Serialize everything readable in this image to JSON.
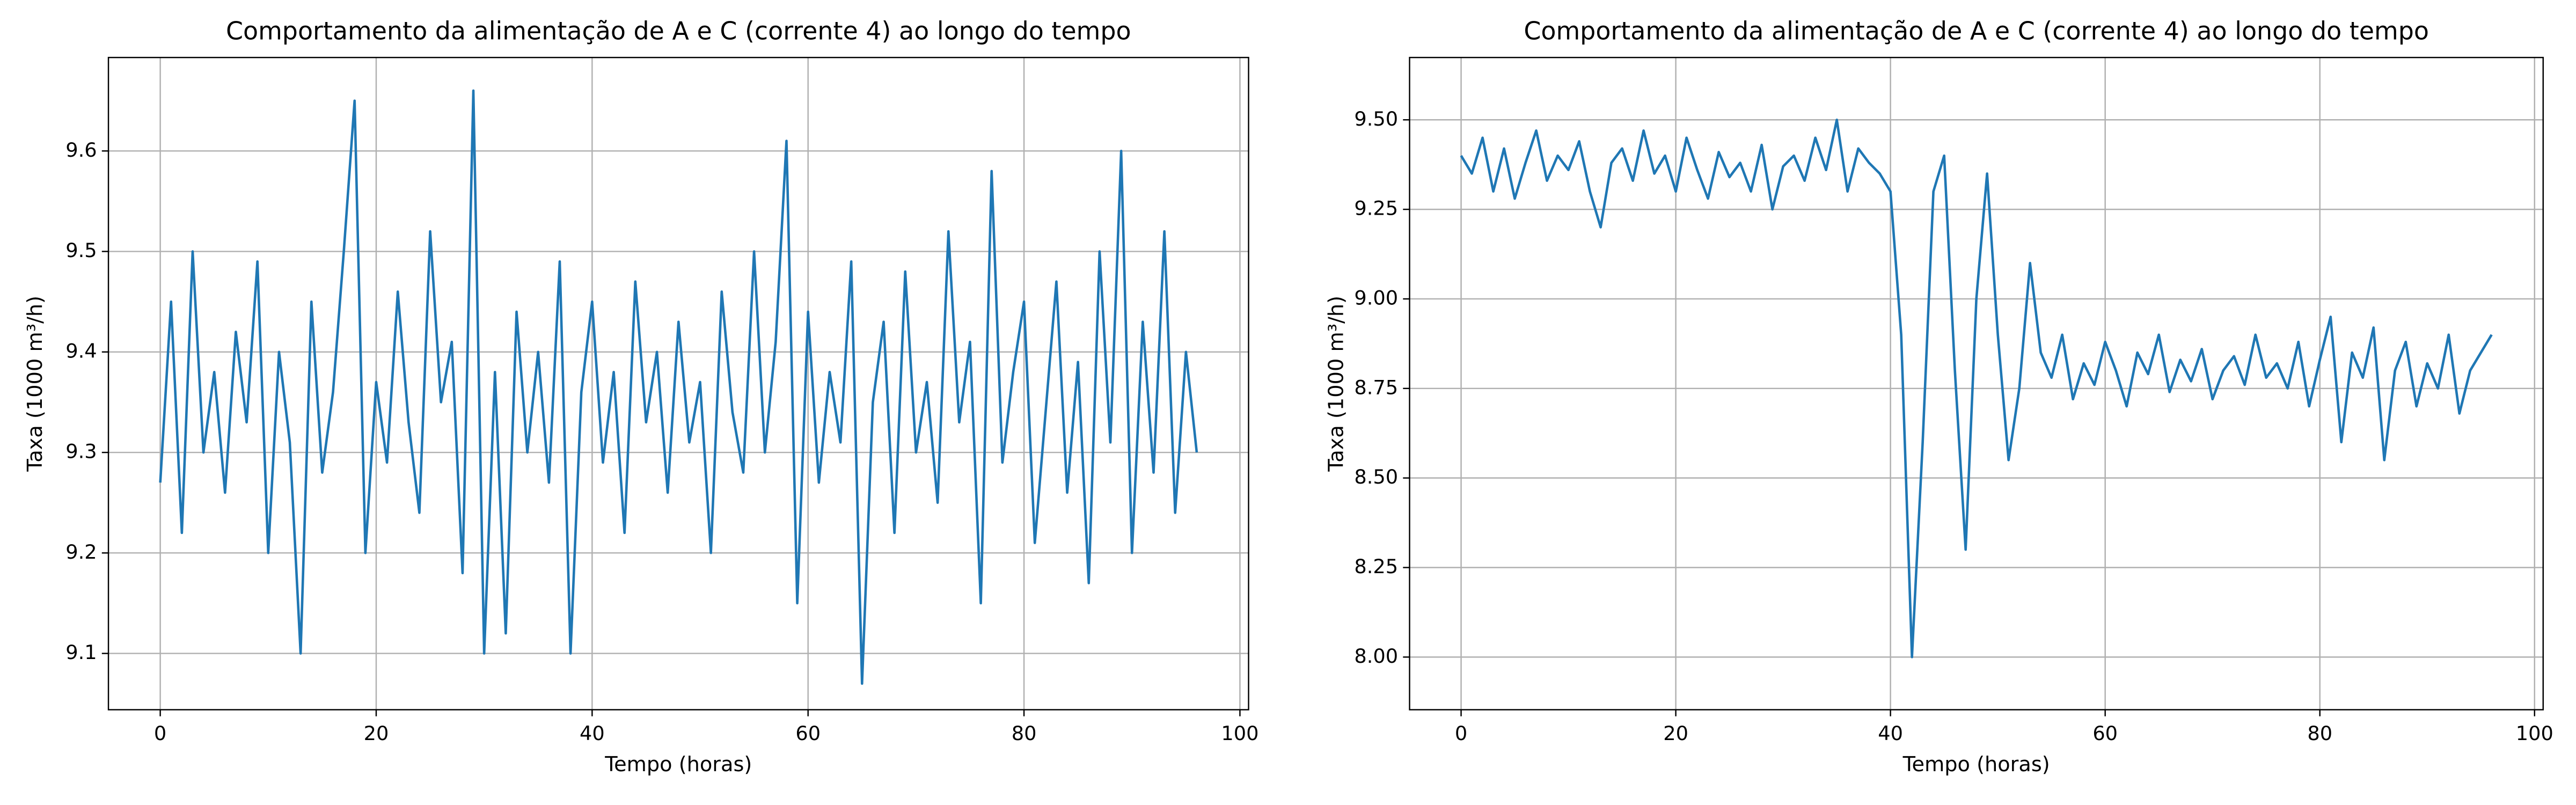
{
  "chart_data": [
    {
      "type": "line",
      "title": "Comportamento da alimentação de A e C (corrente 4) ao longo do tempo",
      "xlabel": "Tempo (horas)",
      "ylabel": "Taxa (1000 m³/h)",
      "grid": true,
      "color": "#1f77b4",
      "xlim": [
        -4.8,
        100.8
      ],
      "xticks": [
        0,
        20,
        40,
        60,
        80,
        100
      ],
      "ylim": [
        9.044,
        9.693
      ],
      "yticks": [
        9.1,
        9.2,
        9.3,
        9.4,
        9.5,
        9.6
      ],
      "x": [
        0,
        1,
        2,
        3,
        4,
        5,
        6,
        7,
        8,
        9,
        10,
        11,
        12,
        13,
        14,
        15,
        16,
        17,
        18,
        19,
        20,
        21,
        22,
        23,
        24,
        25,
        26,
        27,
        28,
        29,
        30,
        31,
        32,
        33,
        34,
        35,
        36,
        37,
        38,
        39,
        40,
        41,
        42,
        43,
        44,
        45,
        46,
        47,
        48,
        49,
        50,
        51,
        52,
        53,
        54,
        55,
        56,
        57,
        58,
        59,
        60,
        61,
        62,
        63,
        64,
        65,
        66,
        67,
        68,
        69,
        70,
        71,
        72,
        73,
        74,
        75,
        76,
        77,
        78,
        79,
        80,
        81,
        82,
        83,
        84,
        85,
        86,
        87,
        88,
        89,
        90,
        91,
        92,
        93,
        94,
        95,
        96
      ],
      "values": [
        9.27,
        9.45,
        9.22,
        9.5,
        9.3,
        9.38,
        9.26,
        9.42,
        9.33,
        9.49,
        9.2,
        9.4,
        9.31,
        9.1,
        9.45,
        9.28,
        9.36,
        9.5,
        9.65,
        9.2,
        9.37,
        9.29,
        9.46,
        9.33,
        9.24,
        9.52,
        9.35,
        9.41,
        9.18,
        9.66,
        9.1,
        9.38,
        9.12,
        9.44,
        9.3,
        9.4,
        9.27,
        9.49,
        9.1,
        9.36,
        9.45,
        9.29,
        9.38,
        9.22,
        9.47,
        9.33,
        9.4,
        9.26,
        9.43,
        9.31,
        9.37,
        9.2,
        9.46,
        9.34,
        9.28,
        9.5,
        9.3,
        9.41,
        9.61,
        9.15,
        9.44,
        9.27,
        9.38,
        9.31,
        9.49,
        9.07,
        9.35,
        9.43,
        9.22,
        9.48,
        9.3,
        9.37,
        9.25,
        9.52,
        9.33,
        9.41,
        9.15,
        9.58,
        9.29,
        9.38,
        9.45,
        9.21,
        9.34,
        9.47,
        9.26,
        9.39,
        9.17,
        9.5,
        9.31,
        9.6,
        9.2,
        9.43,
        9.28,
        9.52,
        9.24,
        9.4,
        9.3
      ]
    },
    {
      "type": "line",
      "title": "Comportamento da alimentação de A e C (corrente 4) ao longo do tempo",
      "xlabel": "Tempo (horas)",
      "ylabel": "Taxa (1000 m³/h)",
      "grid": true,
      "color": "#1f77b4",
      "xlim": [
        -4.8,
        100.8
      ],
      "xticks": [
        0,
        20,
        40,
        60,
        80,
        100
      ],
      "ylim": [
        7.853,
        9.674
      ],
      "yticks": [
        {
          "value": 8,
          "label": "8.00"
        },
        {
          "value": 8.25,
          "label": "8.25"
        },
        {
          "value": 8.5,
          "label": "8.50"
        },
        {
          "value": 8.75,
          "label": "8.75"
        },
        {
          "value": 9,
          "label": "9.00"
        },
        {
          "value": 9.25,
          "label": "9.25"
        },
        {
          "value": 9.5,
          "label": "9.50"
        }
      ],
      "x": [
        0,
        1,
        2,
        3,
        4,
        5,
        6,
        7,
        8,
        9,
        10,
        11,
        12,
        13,
        14,
        15,
        16,
        17,
        18,
        19,
        20,
        21,
        22,
        23,
        24,
        25,
        26,
        27,
        28,
        29,
        30,
        31,
        32,
        33,
        34,
        35,
        36,
        37,
        38,
        39,
        40,
        41,
        42,
        43,
        44,
        45,
        46,
        47,
        48,
        49,
        50,
        51,
        52,
        53,
        54,
        55,
        56,
        57,
        58,
        59,
        60,
        61,
        62,
        63,
        64,
        65,
        66,
        67,
        68,
        69,
        70,
        71,
        72,
        73,
        74,
        75,
        76,
        77,
        78,
        79,
        80,
        81,
        82,
        83,
        84,
        85,
        86,
        87,
        88,
        89,
        90,
        91,
        92,
        93,
        94,
        95,
        96
      ],
      "values": [
        9.4,
        9.35,
        9.45,
        9.3,
        9.42,
        9.28,
        9.38,
        9.47,
        9.33,
        9.4,
        9.36,
        9.44,
        9.3,
        9.2,
        9.38,
        9.42,
        9.33,
        9.47,
        9.35,
        9.4,
        9.3,
        9.45,
        9.36,
        9.28,
        9.41,
        9.34,
        9.38,
        9.3,
        9.43,
        9.25,
        9.37,
        9.4,
        9.33,
        9.45,
        9.36,
        9.5,
        9.3,
        9.42,
        9.38,
        9.35,
        9.3,
        8.9,
        8.0,
        8.6,
        9.3,
        9.4,
        8.8,
        8.3,
        9.0,
        9.35,
        8.9,
        8.55,
        8.75,
        9.1,
        8.85,
        8.78,
        8.9,
        8.72,
        8.82,
        8.76,
        8.88,
        8.8,
        8.7,
        8.85,
        8.79,
        8.9,
        8.74,
        8.83,
        8.77,
        8.86,
        8.72,
        8.8,
        8.84,
        8.76,
        8.9,
        8.78,
        8.82,
        8.75,
        8.88,
        8.7,
        8.83,
        8.95,
        8.6,
        8.85,
        8.78,
        8.92,
        8.55,
        8.8,
        8.88,
        8.7,
        8.82,
        8.75,
        8.9,
        8.68,
        8.8,
        8.85,
        8.9
      ]
    }
  ]
}
